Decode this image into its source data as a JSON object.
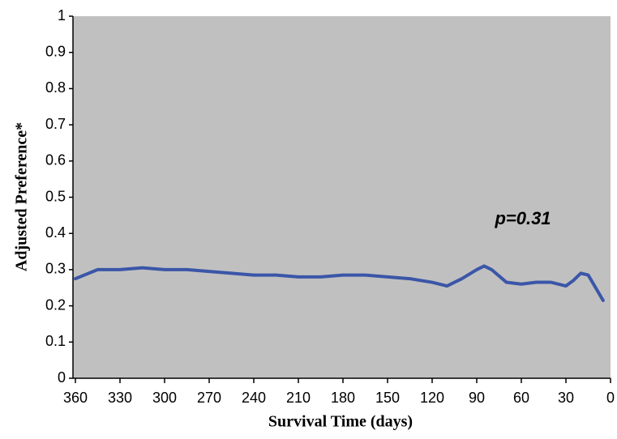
{
  "chart_data": {
    "type": "line",
    "xlabel": "Survival Time (days)",
    "ylabel": "Adjusted Preference*",
    "annotation": "p=0.31",
    "x": [
      360,
      345,
      330,
      315,
      300,
      285,
      270,
      255,
      240,
      225,
      210,
      195,
      180,
      165,
      150,
      135,
      120,
      110,
      100,
      90,
      85,
      80,
      70,
      60,
      50,
      40,
      30,
      25,
      20,
      15,
      5
    ],
    "series": [
      {
        "color": "#3a56a8",
        "values": [
          0.275,
          0.3,
          0.3,
          0.305,
          0.3,
          0.3,
          0.295,
          0.29,
          0.285,
          0.285,
          0.28,
          0.28,
          0.285,
          0.285,
          0.28,
          0.275,
          0.265,
          0.255,
          0.275,
          0.3,
          0.31,
          0.3,
          0.265,
          0.26,
          0.265,
          0.265,
          0.255,
          0.27,
          0.29,
          0.285,
          0.215
        ]
      }
    ],
    "xlim": [
      360,
      0
    ],
    "xticks": [
      360,
      330,
      300,
      270,
      240,
      210,
      180,
      150,
      120,
      90,
      60,
      30,
      0
    ],
    "ylim": [
      0,
      1
    ],
    "yticks": [
      0,
      0.1,
      0.2,
      0.3,
      0.4,
      0.5,
      0.6,
      0.7,
      0.8,
      0.9,
      1
    ],
    "background": "#c0c0c0"
  }
}
